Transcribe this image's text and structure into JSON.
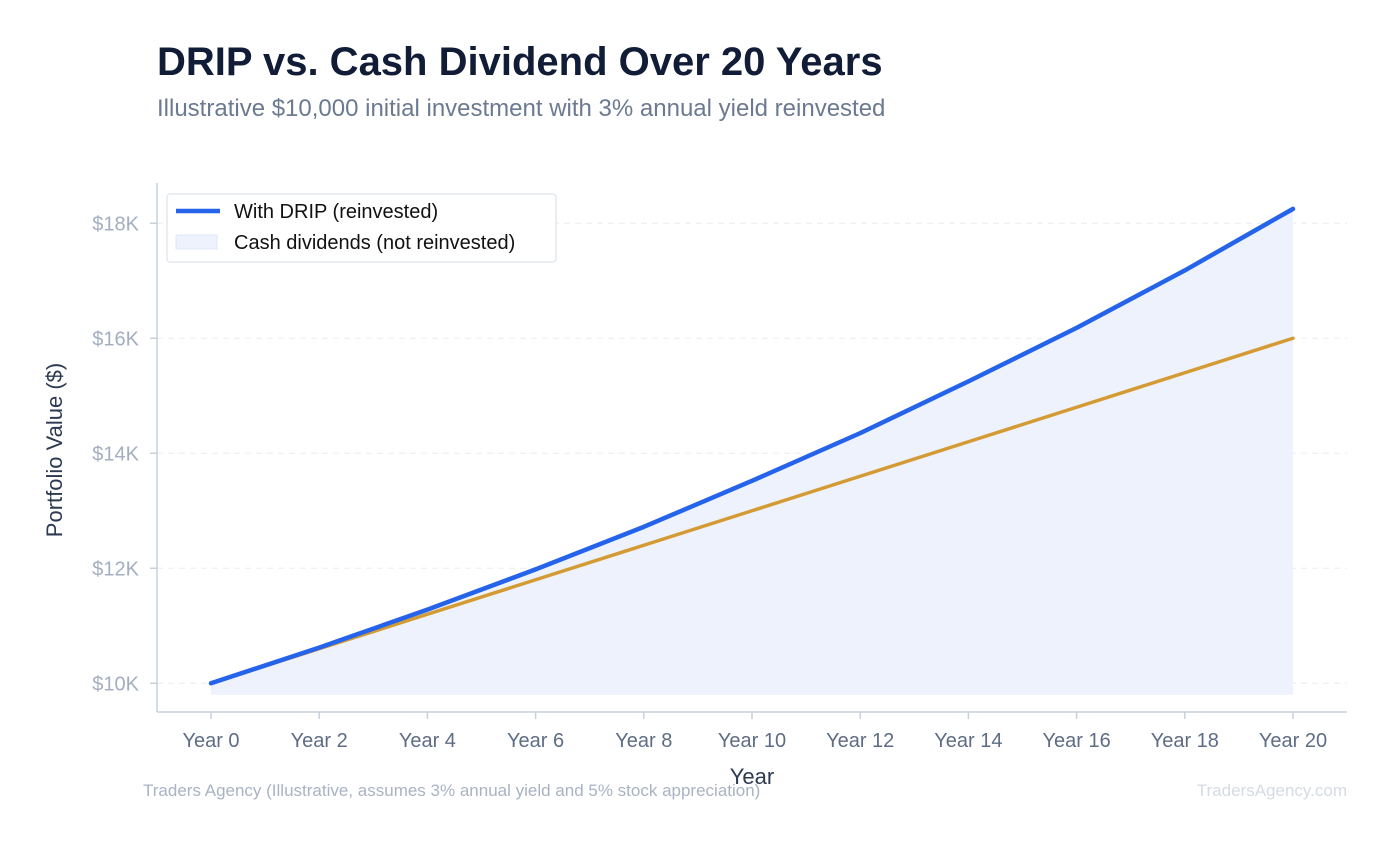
{
  "header": {
    "title": "DRIP vs. Cash Dividend Over 20 Years",
    "subtitle": "Illustrative $10,000 initial investment with 3% annual yield reinvested"
  },
  "footer": {
    "source": "Traders Agency (Illustrative, assumes 3% annual yield and 5% stock appreciation)",
    "brand": "TradersAgency.com"
  },
  "chart_data": {
    "type": "line",
    "title": "DRIP vs. Cash Dividend Over 20 Years",
    "subtitle": "Illustrative $10,000 initial investment with 3% annual yield reinvested",
    "xlabel": "Year",
    "ylabel": "Portfolio Value ($)",
    "categories": [
      "Year 0",
      "Year 2",
      "Year 4",
      "Year 6",
      "Year 8",
      "Year 10",
      "Year 12",
      "Year 14",
      "Year 16",
      "Year 18",
      "Year 20"
    ],
    "x": [
      0,
      2,
      4,
      6,
      8,
      10,
      12,
      14,
      16,
      18,
      20
    ],
    "ylim": [
      9500,
      18700
    ],
    "yticks": [
      10000,
      12000,
      14000,
      16000,
      18000
    ],
    "ytick_labels": [
      "$10K",
      "$12K",
      "$14K",
      "$16K",
      "$18K"
    ],
    "fill_baseline": 9800,
    "grid": "horizontal dashed",
    "legend_position": "top-left",
    "series": [
      {
        "name": "With DRIP (reinvested)",
        "color": "#2563eb",
        "style": "line with shaded area beneath",
        "area_color": "#eef2fc",
        "values": [
          10000,
          10620,
          11280,
          11980,
          12720,
          13520,
          14350,
          15250,
          16180,
          17180,
          18250
        ]
      },
      {
        "name": "Cash dividends (not reinvested)",
        "color": "#d49b35",
        "legend_color": "#eef2fc",
        "style": "line",
        "values": [
          10000,
          10600,
          11200,
          11800,
          12400,
          13000,
          13600,
          14200,
          14800,
          15400,
          16000
        ]
      }
    ]
  }
}
